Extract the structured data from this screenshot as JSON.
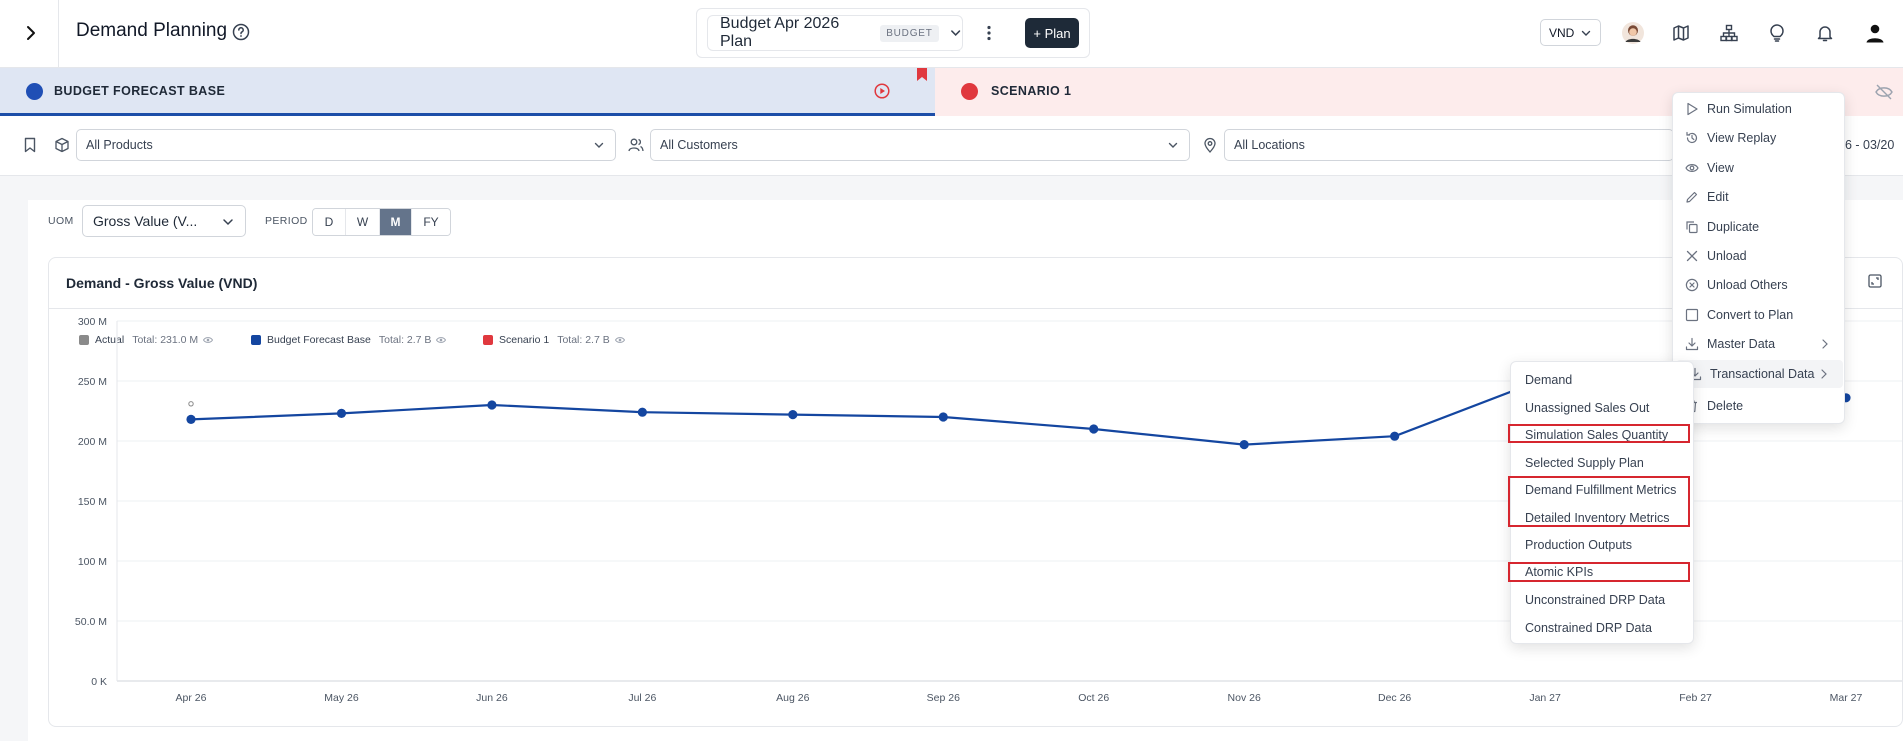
{
  "header": {
    "app_title": "Demand Planning",
    "plan_name": "Budget Apr 2026 Plan",
    "plan_badge": "BUDGET",
    "add_plan_label": "+ Plan",
    "currency": "VND"
  },
  "scenarios": [
    {
      "label": "BUDGET FORECAST BASE",
      "color": "#1f4fb5"
    },
    {
      "label": "SCENARIO 1",
      "color": "#e0383e"
    }
  ],
  "filters": {
    "products": "All Products",
    "customers": "All Customers",
    "locations": "All Locations",
    "date_range": "26 - 03/20"
  },
  "toolbar": {
    "uom_label": "UOM",
    "uom_value": "Gross Value (V...",
    "period_label": "PERIOD",
    "periods": [
      "D",
      "W",
      "M",
      "FY"
    ],
    "active_period": "M"
  },
  "chart_card": {
    "title": "Demand - Gross Value (VND)"
  },
  "legend": [
    {
      "name": "Actual",
      "total": "Total: 231.0 M",
      "color": "#8a8a8a"
    },
    {
      "name": "Budget Forecast Base",
      "total": "Total: 2.7 B",
      "color": "#1446a0"
    },
    {
      "name": "Scenario 1",
      "total": "Total: 2.7 B",
      "color": "#e0383e"
    }
  ],
  "chart_data": {
    "type": "line",
    "title": "Demand - Gross Value (VND)",
    "categories": [
      "Apr 26",
      "May 26",
      "Jun 26",
      "Jul 26",
      "Aug 26",
      "Sep 26",
      "Oct 26",
      "Nov 26",
      "Dec 26",
      "Jan 27",
      "Feb 27",
      "Mar 27"
    ],
    "y_ticks": [
      "0 K",
      "50.0 M",
      "100 M",
      "150 M",
      "200 M",
      "250 M",
      "300 M"
    ],
    "ylim": [
      0,
      300
    ],
    "y_unit": "M",
    "grid": true,
    "series": [
      {
        "name": "Budget Forecast Base",
        "color": "#1446a0",
        "values": [
          218,
          223,
          230,
          224,
          222,
          220,
          210,
          197,
          204,
          252,
          252,
          236
        ]
      },
      {
        "name": "Actual",
        "color": "#8a8a8a",
        "values": [
          231,
          null,
          null,
          null,
          null,
          null,
          null,
          null,
          null,
          null,
          null,
          null
        ]
      }
    ]
  },
  "context_menu": {
    "items": [
      {
        "label": "Run Simulation",
        "icon": "play-icon"
      },
      {
        "label": "View Replay",
        "icon": "history-icon"
      },
      {
        "label": "View",
        "icon": "eye-icon"
      },
      {
        "label": "Edit",
        "icon": "pencil-icon"
      },
      {
        "label": "Duplicate",
        "icon": "copy-icon"
      },
      {
        "label": "Unload",
        "icon": "x-icon"
      },
      {
        "label": "Unload Others",
        "icon": "x-circle-icon"
      },
      {
        "label": "Convert to Plan",
        "icon": "square-icon"
      },
      {
        "label": "Master Data",
        "icon": "download-icon"
      },
      {
        "label": "Transactional Data",
        "icon": "download-icon"
      },
      {
        "label": "Delete",
        "icon": "trash-icon"
      }
    ]
  },
  "submenu": {
    "items": [
      "Demand",
      "Unassigned Sales Out",
      "Simulation Sales Quantity",
      "Selected Supply Plan",
      "Demand Fulfillment Metrics",
      "Detailed Inventory Metrics",
      "Production Outputs",
      "Atomic KPIs",
      "Unconstrained DRP Data",
      "Constrained DRP Data"
    ]
  }
}
